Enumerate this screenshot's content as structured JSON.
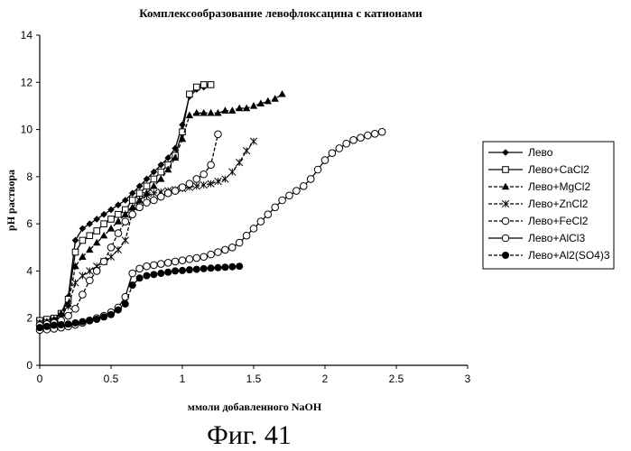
{
  "chart_data": {
    "type": "line",
    "title": "Комплексообразование левофлоксацина с катионами",
    "xlabel": "ммоли добавленного NaOH",
    "ylabel": "pH раствора",
    "xlim": [
      0,
      3
    ],
    "ylim": [
      0,
      14
    ],
    "xticks": [
      0,
      0.5,
      1,
      1.5,
      2,
      2.5,
      3
    ],
    "xtick_labels": [
      "0",
      "0.5",
      "1",
      "1.5",
      "2",
      "2.5",
      "3"
    ],
    "yticks": [
      0,
      2,
      4,
      6,
      8,
      10,
      12,
      14
    ],
    "ytick_labels": [
      "0",
      "2",
      "4",
      "6",
      "8",
      "10",
      "12",
      "14"
    ],
    "grid": false,
    "legend_position": "right",
    "series": [
      {
        "name": "Лево",
        "marker": "diamond-filled",
        "line": "solid",
        "x": [
          0,
          0.05,
          0.1,
          0.15,
          0.2,
          0.25,
          0.3,
          0.35,
          0.4,
          0.45,
          0.5,
          0.55,
          0.6,
          0.65,
          0.7,
          0.75,
          0.8,
          0.85,
          0.9,
          0.95,
          1.0,
          1.05,
          1.1,
          1.15,
          1.2
        ],
        "y": [
          1.9,
          1.95,
          2.0,
          2.2,
          2.9,
          5.3,
          5.8,
          6.0,
          6.2,
          6.4,
          6.6,
          6.8,
          7.0,
          7.3,
          7.6,
          7.9,
          8.2,
          8.5,
          8.8,
          9.2,
          10.2,
          11.4,
          11.7,
          11.8,
          11.9
        ]
      },
      {
        "name": "Лево+CaCl2",
        "marker": "square-open",
        "line": "solid",
        "x": [
          0,
          0.05,
          0.1,
          0.15,
          0.2,
          0.25,
          0.3,
          0.35,
          0.4,
          0.45,
          0.5,
          0.55,
          0.6,
          0.65,
          0.7,
          0.75,
          0.8,
          0.85,
          0.9,
          0.95,
          1.0,
          1.05,
          1.1,
          1.15,
          1.2
        ],
        "y": [
          1.9,
          1.95,
          2.0,
          2.2,
          2.8,
          4.8,
          5.3,
          5.5,
          5.7,
          6.0,
          6.2,
          6.4,
          6.6,
          7.0,
          7.3,
          7.6,
          7.9,
          8.2,
          8.5,
          8.9,
          9.9,
          11.5,
          11.8,
          11.9,
          11.9
        ]
      },
      {
        "name": "Лево+MgCl2",
        "marker": "triangle-filled",
        "line": "dashed",
        "x": [
          0,
          0.05,
          0.1,
          0.15,
          0.2,
          0.25,
          0.3,
          0.35,
          0.4,
          0.45,
          0.5,
          0.55,
          0.6,
          0.65,
          0.7,
          0.75,
          0.8,
          0.85,
          0.9,
          0.95,
          1.0,
          1.05,
          1.1,
          1.15,
          1.2,
          1.25,
          1.3,
          1.35,
          1.4,
          1.45,
          1.5,
          1.55,
          1.6,
          1.65,
          1.7
        ],
        "y": [
          1.8,
          1.85,
          1.95,
          2.2,
          2.6,
          4.2,
          4.6,
          4.9,
          5.2,
          5.5,
          5.8,
          6.1,
          6.4,
          6.7,
          7.0,
          7.3,
          7.6,
          7.9,
          8.3,
          8.8,
          9.6,
          10.6,
          10.7,
          10.7,
          10.7,
          10.7,
          10.8,
          10.8,
          10.9,
          10.9,
          11.0,
          11.1,
          11.2,
          11.3,
          11.5
        ]
      },
      {
        "name": "Лево+ZnCl2",
        "marker": "asterisk",
        "line": "dashed",
        "x": [
          0,
          0.05,
          0.1,
          0.15,
          0.2,
          0.25,
          0.3,
          0.35,
          0.4,
          0.45,
          0.5,
          0.55,
          0.6,
          0.65,
          0.7,
          0.75,
          0.8,
          0.85,
          0.9,
          0.95,
          1.0,
          1.05,
          1.1,
          1.15,
          1.2,
          1.25,
          1.3,
          1.35,
          1.4,
          1.45,
          1.5
        ],
        "y": [
          1.8,
          1.85,
          1.9,
          2.1,
          2.5,
          3.5,
          3.8,
          4.0,
          4.2,
          4.4,
          4.6,
          4.9,
          5.3,
          6.5,
          7.0,
          7.2,
          7.3,
          7.35,
          7.4,
          7.45,
          7.5,
          7.55,
          7.6,
          7.65,
          7.7,
          7.8,
          7.9,
          8.2,
          8.6,
          9.1,
          9.5
        ]
      },
      {
        "name": "Лево+FeCl2",
        "marker": "circle-open",
        "line": "dashed",
        "x": [
          0,
          0.05,
          0.1,
          0.15,
          0.2,
          0.25,
          0.3,
          0.35,
          0.4,
          0.45,
          0.5,
          0.55,
          0.6,
          0.65,
          0.7,
          0.75,
          0.8,
          0.85,
          0.9,
          0.95,
          1.0,
          1.05,
          1.1,
          1.15,
          1.2,
          1.25
        ],
        "y": [
          1.7,
          1.75,
          1.8,
          1.9,
          2.1,
          2.4,
          3.0,
          3.6,
          4.0,
          4.4,
          5.0,
          5.6,
          6.1,
          6.4,
          6.7,
          6.9,
          7.0,
          7.15,
          7.3,
          7.4,
          7.55,
          7.7,
          7.9,
          8.1,
          8.5,
          9.8
        ]
      },
      {
        "name": "Лево+AlCl3",
        "marker": "circle-open",
        "line": "solid",
        "x": [
          0,
          0.05,
          0.1,
          0.15,
          0.2,
          0.25,
          0.3,
          0.35,
          0.4,
          0.45,
          0.5,
          0.55,
          0.6,
          0.65,
          0.7,
          0.75,
          0.8,
          0.85,
          0.9,
          0.95,
          1.0,
          1.05,
          1.1,
          1.15,
          1.2,
          1.25,
          1.3,
          1.35,
          1.4,
          1.45,
          1.5,
          1.55,
          1.6,
          1.65,
          1.7,
          1.75,
          1.8,
          1.85,
          1.9,
          1.95,
          2.0,
          2.05,
          2.1,
          2.15,
          2.2,
          2.25,
          2.3,
          2.35,
          2.4
        ],
        "y": [
          1.5,
          1.52,
          1.55,
          1.6,
          1.65,
          1.72,
          1.8,
          1.9,
          2.0,
          2.1,
          2.25,
          2.45,
          2.9,
          3.9,
          4.1,
          4.2,
          4.25,
          4.3,
          4.35,
          4.4,
          4.45,
          4.5,
          4.55,
          4.6,
          4.7,
          4.8,
          4.9,
          5.0,
          5.2,
          5.5,
          5.8,
          6.1,
          6.4,
          6.7,
          7.0,
          7.2,
          7.4,
          7.6,
          7.9,
          8.3,
          8.7,
          9.0,
          9.2,
          9.4,
          9.55,
          9.65,
          9.75,
          9.82,
          9.9
        ]
      },
      {
        "name": "Лево+Al2(SO4)3",
        "marker": "circle-filled",
        "line": "dashed",
        "x": [
          0,
          0.05,
          0.1,
          0.15,
          0.2,
          0.25,
          0.3,
          0.35,
          0.4,
          0.45,
          0.5,
          0.55,
          0.6,
          0.65,
          0.7,
          0.75,
          0.8,
          0.85,
          0.9,
          0.95,
          1.0,
          1.05,
          1.1,
          1.15,
          1.2,
          1.25,
          1.3,
          1.35,
          1.4
        ],
        "y": [
          1.6,
          1.65,
          1.7,
          1.72,
          1.75,
          1.8,
          1.85,
          1.9,
          1.95,
          2.05,
          2.15,
          2.35,
          2.6,
          3.4,
          3.7,
          3.8,
          3.85,
          3.9,
          3.95,
          4.0,
          4.02,
          4.05,
          4.07,
          4.1,
          4.12,
          4.14,
          4.16,
          4.18,
          4.2
        ]
      }
    ]
  },
  "figure_caption": "Фиг. 41"
}
